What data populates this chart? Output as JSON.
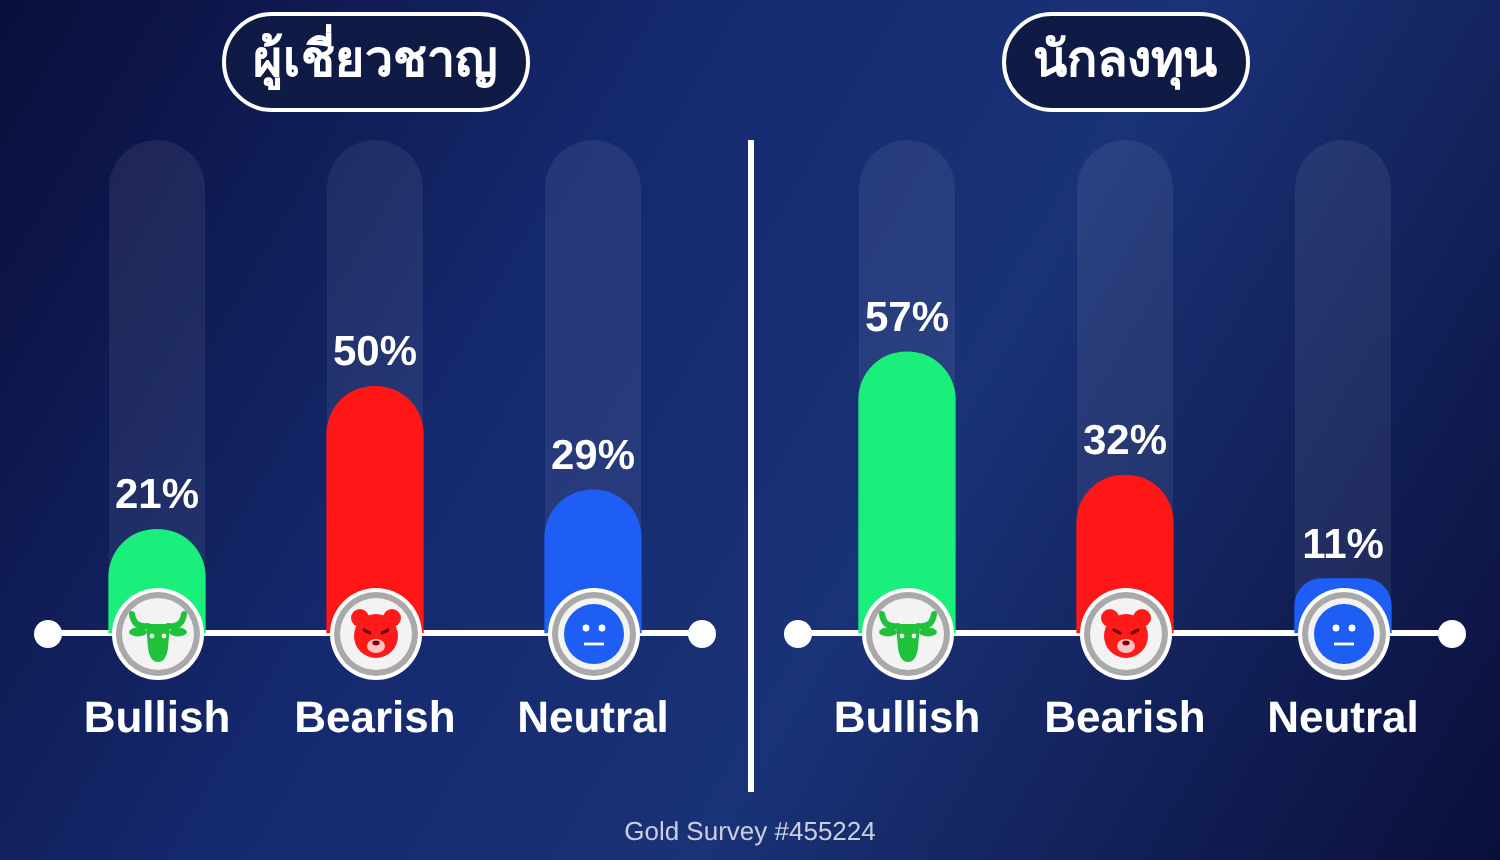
{
  "chart_data": [
    {
      "type": "bar",
      "title": "ผู้เชี่ยวชาญ",
      "categories": [
        "Bullish",
        "Bearish",
        "Neutral"
      ],
      "values": [
        21,
        50,
        29
      ],
      "colors": [
        "#19ef7a",
        "#ff1717",
        "#1e5ef5"
      ],
      "value_labels": [
        "21%",
        "50%",
        "29%"
      ],
      "ylim": [
        0,
        100
      ],
      "annotations": [
        "Gold Survey #455224"
      ]
    },
    {
      "type": "bar",
      "title": "นักลงทุน",
      "categories": [
        "Bullish",
        "Bearish",
        "Neutral"
      ],
      "values": [
        57,
        32,
        11
      ],
      "colors": [
        "#19ef7a",
        "#ff1717",
        "#1e5ef5"
      ],
      "value_labels": [
        "57%",
        "32%",
        "11%"
      ],
      "ylim": [
        0,
        100
      ]
    }
  ]
}
